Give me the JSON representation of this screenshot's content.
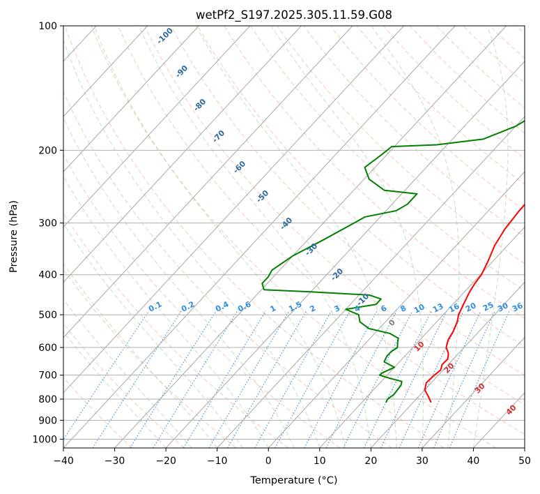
{
  "chart_data": {
    "type": "line",
    "title": "wetPf2_S197.2025.305.11.59.G08",
    "xlabel": "Temperature (°C)",
    "ylabel": "Pressure (hPa)",
    "xlim": [
      -40,
      50
    ],
    "ylim": [
      1050,
      100
    ],
    "y_scale": "log",
    "x_ticks": [
      -40,
      -30,
      -20,
      -10,
      0,
      10,
      20,
      30,
      40,
      50
    ],
    "x_tick_labels": [
      "−40",
      "−30",
      "−20",
      "−10",
      "0",
      "10",
      "20",
      "30",
      "40",
      "50"
    ],
    "y_ticks": [
      1000,
      900,
      800,
      700,
      600,
      500,
      400,
      300,
      200,
      100
    ],
    "y_tick_labels": [
      "1000",
      "900",
      "800",
      "700",
      "600",
      "500",
      "400",
      "300",
      "200",
      "100"
    ],
    "grid": true,
    "series": [
      {
        "color": "#ff0000",
        "points": [
          [
            23.5,
            815
          ],
          [
            22,
            790
          ],
          [
            20,
            760
          ],
          [
            19,
            730
          ],
          [
            19.2,
            700
          ],
          [
            19.5,
            680
          ],
          [
            18.8,
            660
          ],
          [
            18.9,
            640
          ],
          [
            18,
            620
          ],
          [
            16.5,
            600
          ],
          [
            15.5,
            575
          ],
          [
            15,
            550
          ],
          [
            14,
            520
          ],
          [
            13,
            500
          ],
          [
            12,
            470
          ],
          [
            11,
            440
          ],
          [
            10.5,
            420
          ],
          [
            10.2,
            400
          ],
          [
            9,
            370
          ],
          [
            7.5,
            340
          ],
          [
            6.5,
            310
          ],
          [
            6,
            280
          ],
          [
            5.8,
            250
          ],
          [
            5.5,
            220
          ],
          [
            5,
            200
          ],
          [
            4.5,
            170
          ],
          [
            4,
            150
          ],
          [
            4.2,
            130
          ],
          [
            3.8,
            120
          ],
          [
            4.5,
            110
          ],
          [
            6,
            103
          ],
          [
            7.2,
            100
          ]
        ]
      },
      {
        "color": "#008000",
        "points": [
          [
            14.7,
            815
          ],
          [
            14.4,
            800
          ],
          [
            14.8,
            780
          ],
          [
            14.5,
            740
          ],
          [
            14,
            725
          ],
          [
            11,
            712
          ],
          [
            8.5,
            700
          ],
          [
            8.7,
            690
          ],
          [
            10,
            670
          ],
          [
            8.5,
            660
          ],
          [
            7,
            650
          ],
          [
            6.5,
            630
          ],
          [
            6.5,
            615
          ],
          [
            7,
            600
          ],
          [
            6.2,
            585
          ],
          [
            5.5,
            570
          ],
          [
            3,
            555
          ],
          [
            -2,
            540
          ],
          [
            -5,
            520
          ],
          [
            -6.5,
            500
          ],
          [
            -10,
            485
          ],
          [
            -5,
            472
          ],
          [
            -5,
            458
          ],
          [
            -8,
            448
          ],
          [
            -20,
            440
          ],
          [
            -29.5,
            435
          ],
          [
            -31,
            420
          ],
          [
            -31,
            405
          ],
          [
            -31.5,
            390
          ],
          [
            -30,
            360
          ],
          [
            -27,
            330
          ],
          [
            -24,
            300
          ],
          [
            -23,
            290
          ],
          [
            -18,
            280
          ],
          [
            -17,
            270
          ],
          [
            -17,
            255
          ],
          [
            -24,
            250
          ],
          [
            -29,
            235
          ],
          [
            -32,
            220
          ],
          [
            -31,
            205
          ],
          [
            -30.5,
            196
          ],
          [
            -22,
            194
          ],
          [
            -14,
            188
          ],
          [
            -10,
            175
          ],
          [
            -8.5,
            165
          ],
          [
            -5,
            150
          ],
          [
            -3,
            140
          ],
          [
            -3,
            130
          ],
          [
            -2,
            120
          ],
          [
            -1,
            112
          ],
          [
            0.5,
            105
          ],
          [
            1.5,
            100
          ]
        ]
      }
    ],
    "isotherm_label_values": [
      "-100",
      "-90",
      "-80",
      "-70",
      "-60",
      "-50",
      "-40",
      "-30",
      "-20",
      "-10"
    ],
    "dry_adiabat_label_values": [
      "0",
      "10",
      "20",
      "30",
      "40"
    ],
    "mixing_ratio_label_values": [
      "0.1",
      "0.2",
      "0.4",
      "0.6",
      "1",
      "1.5",
      "2",
      "3",
      "4",
      "6",
      "8",
      "10",
      "13",
      "16",
      "20",
      "25",
      "30",
      "36"
    ]
  },
  "colors": {
    "temperature": "#ff0000",
    "dewpoint": "#008000",
    "isotherm_label": "#2a6aa3",
    "mixing_ratio_label": "#2f8ee0",
    "dry_adiabat_label": "#d32f2f",
    "zero_label": "#7f7f7f"
  }
}
